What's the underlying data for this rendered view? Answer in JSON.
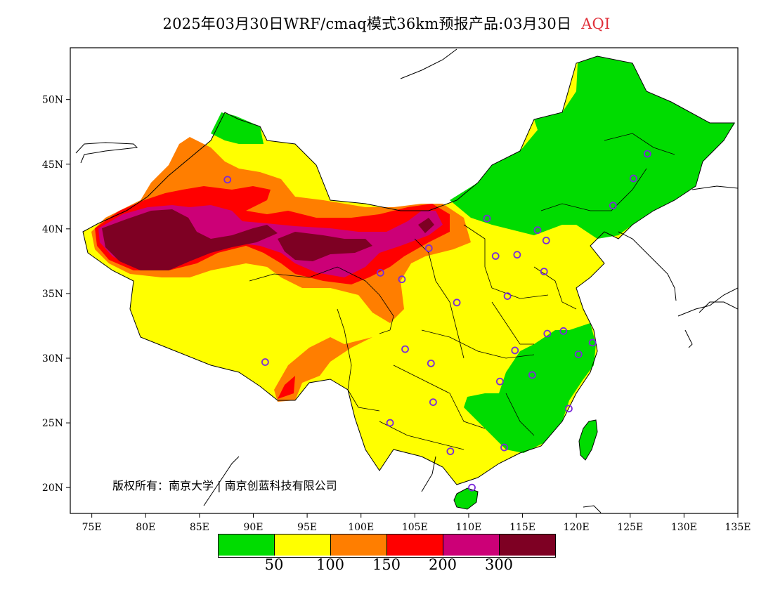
{
  "title": {
    "main": "2025年03月30日WRF/cmaq模式36km预报产品:03月30日",
    "variable": "AQI"
  },
  "axes": {
    "lon_ticks": [
      "75E",
      "80E",
      "85E",
      "90E",
      "95E",
      "100E",
      "105E",
      "110E",
      "115E",
      "120E",
      "125E",
      "130E",
      "135E"
    ],
    "lat_ticks": [
      "50N",
      "45N",
      "40N",
      "35N",
      "30N",
      "25N",
      "20N"
    ],
    "lon_range": [
      73,
      135
    ],
    "lat_range": [
      18,
      54
    ]
  },
  "copyright": "版权所有：南京大学 | 南京创蓝科技有限公司",
  "legend": {
    "colors": [
      "#00dc00",
      "#ffff00",
      "#ff7e00",
      "#ff0000",
      "#cc0077",
      "#7e0023"
    ],
    "labels": [
      "50",
      "100",
      "150",
      "200",
      "300"
    ]
  },
  "stations": [
    {
      "lon": 87.6,
      "lat": 43.8
    },
    {
      "lon": 91.1,
      "lat": 29.7
    },
    {
      "lon": 101.8,
      "lat": 36.6
    },
    {
      "lon": 103.8,
      "lat": 36.1
    },
    {
      "lon": 106.3,
      "lat": 38.5
    },
    {
      "lon": 108.9,
      "lat": 34.3
    },
    {
      "lon": 104.1,
      "lat": 30.7
    },
    {
      "lon": 106.5,
      "lat": 29.6
    },
    {
      "lon": 106.7,
      "lat": 26.6
    },
    {
      "lon": 102.7,
      "lat": 25.0
    },
    {
      "lon": 108.3,
      "lat": 22.8
    },
    {
      "lon": 110.3,
      "lat": 20.0
    },
    {
      "lon": 113.3,
      "lat": 23.1
    },
    {
      "lon": 112.9,
      "lat": 28.2
    },
    {
      "lon": 114.3,
      "lat": 30.6
    },
    {
      "lon": 115.9,
      "lat": 28.7
    },
    {
      "lon": 117.3,
      "lat": 31.9
    },
    {
      "lon": 118.8,
      "lat": 32.1
    },
    {
      "lon": 120.2,
      "lat": 30.3
    },
    {
      "lon": 121.5,
      "lat": 31.2
    },
    {
      "lon": 119.3,
      "lat": 26.1
    },
    {
      "lon": 113.6,
      "lat": 34.8
    },
    {
      "lon": 117.0,
      "lat": 36.7
    },
    {
      "lon": 114.5,
      "lat": 38.0
    },
    {
      "lon": 112.5,
      "lat": 37.9
    },
    {
      "lon": 117.2,
      "lat": 39.1
    },
    {
      "lon": 116.4,
      "lat": 39.9
    },
    {
      "lon": 111.7,
      "lat": 40.8
    },
    {
      "lon": 123.4,
      "lat": 41.8
    },
    {
      "lon": 125.3,
      "lat": 43.9
    },
    {
      "lon": 126.6,
      "lat": 45.8
    }
  ]
}
